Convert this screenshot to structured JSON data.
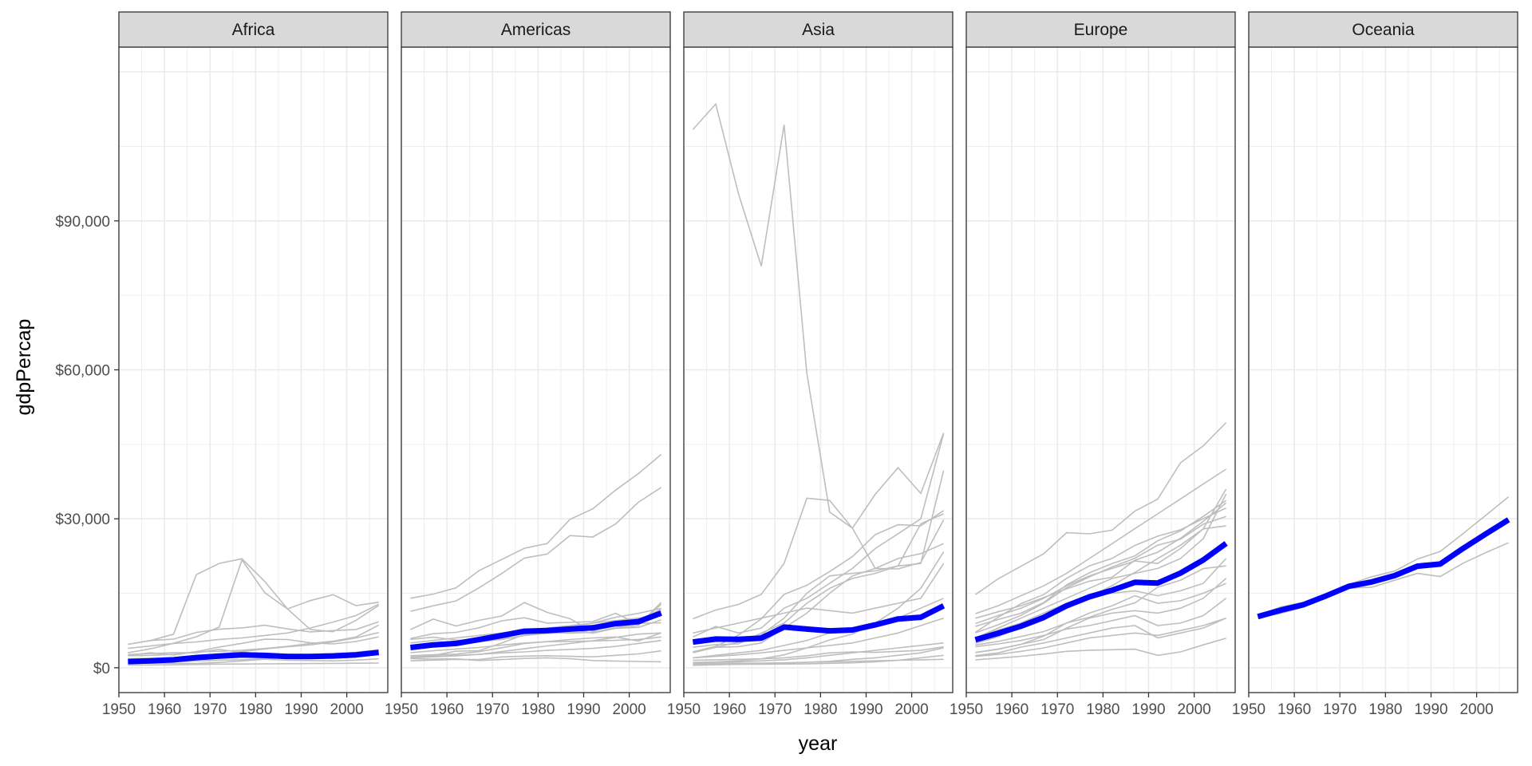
{
  "chart_data": {
    "type": "line",
    "facet_by": "continent",
    "xlabel": "year",
    "ylabel": "gdpPercap",
    "x_ticks": [
      1950,
      1960,
      1970,
      1980,
      1990,
      2000
    ],
    "y_ticks": [
      0,
      30000,
      60000,
      90000
    ],
    "y_tick_labels": [
      "$0",
      "$30,000",
      "$60,000",
      "$90,000"
    ],
    "xlim": [
      1950,
      2009
    ],
    "ylim": [
      -5000,
      125000
    ],
    "grid": true,
    "legend": "none",
    "years": [
      1952,
      1957,
      1962,
      1967,
      1972,
      1977,
      1982,
      1987,
      1992,
      1997,
      2002,
      2007
    ],
    "colors": {
      "country_line": "#bebebe",
      "mean_line": "#0000ff",
      "strip_fill": "#d9d9d9",
      "grid": "#ebebeb",
      "panel_border": "#333333"
    },
    "panels": [
      {
        "name": "Africa",
        "mean": [
          1253,
          1385,
          1598,
          2050,
          2340,
          2586,
          2482,
          2283,
          2282,
          2379,
          2599,
          3089
        ],
        "countries": [
          [
            4725,
            5487,
            6757,
            18773,
            21011,
            21951,
            17364,
            11864,
            13522,
            14723,
            12521,
            13206
          ],
          [
            3021,
            3827,
            4935,
            6250,
            8200,
            21745,
            15113,
            11864,
            7704,
            7255,
            9534,
            12570
          ],
          [
            2449,
            3014,
            2551,
            3247,
            4183,
            4910,
            5745,
            5681,
            5023,
            4797,
            5288,
            6223
          ],
          [
            4725,
            5487,
            5769,
            7114,
            7765,
            8029,
            8568,
            7826,
            7225,
            7479,
            7711,
            9270
          ],
          [
            1418,
            1876,
            1983,
            2404,
            2740,
            3260,
            3792,
            4226,
            4605,
            5211,
            6005,
            7092
          ],
          [
            2669,
            2864,
            3021,
            3020,
            3694,
            3082,
            2867,
            2629,
            2681,
            2856,
            3106,
            3633
          ],
          [
            1254,
            1385,
            1598,
            1711,
            1930,
            2372,
            2603,
            2714,
            2628,
            2755,
            2880,
            3394
          ],
          [
            853,
            944,
            896,
            861,
            1072,
            1385,
            1710,
            1509,
            1458,
            1393,
            1544,
            1803
          ],
          [
            1077,
            1154,
            1233,
            1380,
            1542,
            1628,
            1840,
            2033,
            2214,
            2460,
            2872,
            3523
          ],
          [
            2424,
            2505,
            2705,
            3229,
            3300,
            3537,
            3890,
            4320,
            4890,
            5350,
            6200,
            8600
          ],
          [
            3900,
            4400,
            4900,
            5200,
            5700,
            6000,
            6500,
            7000,
            8000,
            9200,
            10500,
            12800
          ],
          [
            540,
            570,
            610,
            680,
            730,
            760,
            790,
            810,
            850,
            880,
            910,
            950
          ],
          [
            1500,
            1600,
            1700,
            1900,
            2100,
            2300,
            2400,
            2500,
            2600,
            2700,
            2900,
            3200
          ],
          [
            1800,
            1900,
            2000,
            2150,
            2350,
            2500,
            2500,
            2400,
            2400,
            2500,
            2700,
            3000
          ]
        ]
      },
      {
        "name": "Americas",
        "mean": [
          4079,
          4616,
          4902,
          5668,
          6491,
          7352,
          7507,
          7794,
          8045,
          8890,
          9288,
          11003
        ],
        "countries": [
          [
            13990,
            14847,
            16077,
            19530,
            21806,
            24073,
            25010,
            29884,
            32004,
            35767,
            39097,
            42952
          ],
          [
            11367,
            12490,
            13462,
            16077,
            18971,
            22091,
            22899,
            26627,
            26343,
            28955,
            33329,
            36319
          ],
          [
            5911,
            6857,
            7134,
            8053,
            9443,
            10079,
            8998,
            9140,
            9308,
            10967,
            8798,
            12779
          ],
          [
            7690,
            9803,
            8423,
            9549,
            10420,
            13144,
            11152,
            9884,
            7302,
            9167,
            9836,
            11416
          ],
          [
            3940,
            4284,
            4690,
            5208,
            5992,
            7104,
            7100,
            6952,
            7128,
            7946,
            8502,
            13172
          ],
          [
            3759,
            4245,
            4957,
            5788,
            6332,
            7402,
            7727,
            8132,
            9014,
            10164,
            10951,
            11977
          ],
          [
            5716,
            6150,
            5603,
            5444,
            5703,
            6504,
            6920,
            7107,
            7114,
            8077,
            8948,
            9065
          ],
          [
            2108,
            2487,
            3337,
            3430,
            4986,
            6660,
            7031,
            7807,
            6950,
            7957,
            8131,
            9645
          ],
          [
            2144,
            2323,
            2492,
            2679,
            3265,
            3815,
            4397,
            4903,
            5444,
            6118,
            6778,
            7006
          ],
          [
            4086,
            4690,
            4895,
            5249,
            5713,
            7300,
            7830,
            7716,
            8296,
            9146,
            9467,
            11819
          ],
          [
            2428,
            2617,
            2750,
            3243,
            4031,
            4880,
            5268,
            5690,
            6000,
            6200,
            5400,
            7000
          ],
          [
            3048,
            3421,
            3776,
            4086,
            4558,
            4982,
            5256,
            5322,
            5402,
            5520,
            5700,
            6200
          ],
          [
            1397,
            1544,
            1662,
            1653,
            2190,
            2348,
            2420,
            2300,
            2200,
            2500,
            2800,
            3400
          ],
          [
            1840,
            1726,
            1796,
            1452,
            1654,
            1874,
            2012,
            1823,
            1456,
            1342,
            1270,
            1202
          ],
          [
            2000,
            2200,
            2400,
            2700,
            3000,
            3200,
            3500,
            3700,
            3900,
            4300,
            4900,
            5500
          ],
          [
            5000,
            5500,
            6000,
            6500,
            7000,
            7500,
            8000,
            8500,
            9000,
            9500,
            10000,
            10500
          ]
        ]
      },
      {
        "name": "Asia",
        "mean": [
          5195,
          5788,
          5729,
          5971,
          8187,
          7791,
          7434,
          7608,
          8640,
          9834,
          10174,
          12473
        ],
        "countries": [
          [
            108382,
            113523,
            95458,
            80895,
            109348,
            59265,
            31354,
            28118,
            34932,
            40301,
            35110,
            47307
          ],
          [
            9867,
            11636,
            12753,
            14805,
            21011,
            34167,
            33693,
            28118,
            20000,
            19900,
            21200,
            29796
          ],
          [
            3054,
            4126,
            5151,
            6637,
            10000,
            15000,
            18500,
            19000,
            19500,
            20500,
            29000,
            31000
          ],
          [
            3217,
            4318,
            6577,
            9848,
            14778,
            16610,
            19384,
            22375,
            26825,
            28817,
            28604,
            31656
          ],
          [
            3035,
            4130,
            4254,
            5000,
            8000,
            11000,
            15000,
            18500,
            20000,
            22000,
            23000,
            25000
          ],
          [
            6197,
            8315,
            6999,
            8000,
            12000,
            14000,
            17000,
            20000,
            24000,
            27000,
            30000,
            47143
          ],
          [
            4129,
            4680,
            4800,
            7000,
            9000,
            13000,
            16000,
            18000,
            19000,
            20500,
            21000,
            39724
          ],
          [
            1000,
            1100,
            1200,
            1400,
            1600,
            2000,
            2500,
            3000,
            3500,
            4000,
            4500,
            5000
          ],
          [
            2000,
            2300,
            2600,
            3000,
            3500,
            4000,
            4500,
            5000,
            6000,
            7000,
            8500,
            10000
          ],
          [
            1055,
            1179,
            1394,
            1800,
            2600,
            4000,
            5600,
            6800,
            9000,
            12000,
            16000,
            23348
          ],
          [
            500,
            600,
            700,
            800,
            900,
            1100,
            1300,
            1700,
            2000,
            2500,
            3000,
            4000
          ],
          [
            800,
            850,
            900,
            950,
            1000,
            1100,
            1200,
            1300,
            1400,
            1500,
            1600,
            1700
          ],
          [
            1500,
            1600,
            1700,
            1800,
            2000,
            2400,
            3000,
            3200,
            3100,
            3300,
            3500,
            4200
          ],
          [
            600,
            650,
            700,
            720,
            750,
            800,
            900,
            1000,
            1200,
            1500,
            2000,
            2500
          ],
          [
            7000,
            8000,
            9000,
            10000,
            11000,
            12000,
            11500,
            11000,
            12000,
            13000,
            14000,
            21000
          ],
          [
            2000,
            2500,
            3000,
            3500,
            4500,
            5500,
            7000,
            8000,
            9000,
            10000,
            12000,
            14000
          ]
        ]
      },
      {
        "name": "Europe",
        "mean": [
          5661,
          6963,
          8365,
          10144,
          12480,
          14284,
          15618,
          17214,
          17062,
          19077,
          21712,
          25054
        ],
        "countries": [
          [
            14734,
            17909,
            20431,
            22966,
            27195,
            26982,
            27714,
            31541,
            33966,
            41283,
            44684,
            49357
          ],
          [
            10900,
            12500,
            14500,
            16500,
            19000,
            22000,
            25000,
            28000,
            31000,
            34000,
            37000,
            40000
          ],
          [
            9979,
            11283,
            12477,
            14142,
            15895,
            17429,
            18232,
            21664,
            23270,
            26074,
            29479,
            33203
          ],
          [
            8343,
            9715,
            10991,
            13149,
            16672,
            19118,
            20979,
            22526,
            25576,
            27561,
            30486,
            33692
          ],
          [
            7029,
            8663,
            10560,
            12999,
            16107,
            18293,
            20294,
            22066,
            24703,
            25890,
            28926,
            30470
          ],
          [
            7144,
            10187,
            12902,
            14746,
            18016,
            20512,
            22031,
            24639,
            26505,
            27789,
            30036,
            32170
          ],
          [
            6000,
            8000,
            10000,
            12000,
            14000,
            16000,
            18000,
            19000,
            20000,
            22000,
            26000,
            35000
          ],
          [
            4931,
            6249,
            8243,
            10022,
            12269,
            14256,
            16537,
            19208,
            22013,
            24675,
            27968,
            28570
          ],
          [
            3069,
            3774,
            4728,
            6362,
            9023,
            10172,
            11754,
            13039,
            16207,
            17641,
            19971,
            20510
          ],
          [
            3068,
            3731,
            4728,
            5693,
            8000,
            10000,
            11000,
            11500,
            11000,
            12000,
            14000,
            18000
          ],
          [
            4255,
            4800,
            5500,
            6500,
            7800,
            8500,
            9500,
            10500,
            8500,
            9000,
            10500,
            14000
          ],
          [
            2444,
            3009,
            4162,
            5000,
            6000,
            7000,
            8000,
            8500,
            6000,
            7000,
            8000,
            10000
          ],
          [
            1601,
            1942,
            2313,
            2760,
            3313,
            3534,
            3631,
            3738,
            2497,
            3193,
            4604,
            5937
          ],
          [
            2280,
            2700,
            3300,
            4000,
            5000,
            6000,
            6500,
            7000,
            6500,
            7500,
            8500,
            10000
          ],
          [
            4600,
            5300,
            6300,
            7300,
            9000,
            11000,
            12500,
            14500,
            13000,
            13500,
            15000,
            17000
          ],
          [
            6100,
            7600,
            9000,
            11000,
            13000,
            14500,
            15000,
            15500,
            14500,
            15500,
            17000,
            22000
          ],
          [
            8900,
            10500,
            12000,
            14000,
            16500,
            18500,
            20000,
            21500,
            21000,
            24000,
            28000,
            36000
          ]
        ]
      },
      {
        "name": "Oceania",
        "mean": [
          10298,
          11599,
          12696,
          14495,
          16417,
          17284,
          18555,
          20448,
          20894,
          24024,
          26939,
          29810
        ],
        "countries": [
          [
            10040,
            10950,
            12217,
            14526,
            16789,
            18334,
            19477,
            21889,
            23425,
            26998,
            30688,
            34435
          ],
          [
            10557,
            12247,
            13176,
            14464,
            16046,
            16234,
            17632,
            19007,
            18363,
            21050,
            23190,
            25185
          ]
        ]
      }
    ]
  }
}
